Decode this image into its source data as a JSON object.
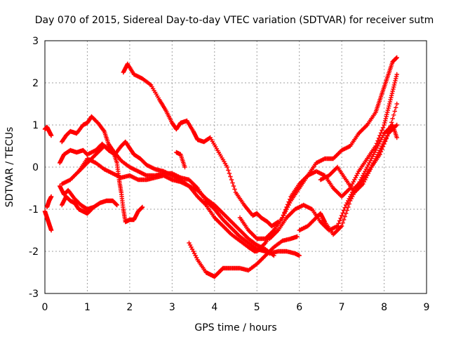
{
  "chart_data": {
    "type": "scatter",
    "title": "Day 070 of 2015, Sidereal Day-to-day VTEC variation (SDTVAR) for receiver sutm",
    "xlabel": "GPS time / hours",
    "ylabel": "SDTVAR / TECUs",
    "xlim": [
      0,
      9
    ],
    "ylim": [
      -3,
      3
    ],
    "xticks": [
      "0",
      "1",
      "2",
      "3",
      "4",
      "5",
      "6",
      "7",
      "8",
      "9"
    ],
    "yticks": [
      "-3",
      "-2",
      "-1",
      "0",
      "1",
      "2",
      "3"
    ],
    "grid": true,
    "marker": "plus",
    "series_color": "#ff0000",
    "series": [
      {
        "x": [
          0.0,
          0.05,
          0.1,
          0.15
        ],
        "y": [
          0.9,
          0.95,
          0.85,
          0.75
        ]
      },
      {
        "x": [
          0.0,
          0.05,
          0.1,
          0.15
        ],
        "y": [
          -1.05,
          -1.2,
          -1.35,
          -1.5
        ]
      },
      {
        "x": [
          0.05,
          0.1,
          0.15
        ],
        "y": [
          -0.95,
          -0.8,
          -0.7
        ]
      },
      {
        "x": [
          1.85,
          1.95,
          2.1,
          2.3,
          2.5,
          2.7,
          2.85,
          3.0,
          3.1,
          3.2,
          3.35,
          3.5,
          3.6,
          3.75,
          3.9,
          4.1,
          4.3,
          4.5,
          4.7,
          4.9,
          5.0,
          5.1,
          5.25,
          5.35,
          5.5
        ],
        "y": [
          2.25,
          2.45,
          2.2,
          2.1,
          1.95,
          1.6,
          1.35,
          1.05,
          0.9,
          1.05,
          1.1,
          0.85,
          0.65,
          0.6,
          0.7,
          0.35,
          0.0,
          -0.6,
          -0.9,
          -1.15,
          -1.1,
          -1.2,
          -1.3,
          -1.4,
          -1.3
        ]
      },
      {
        "x": [
          0.4,
          0.5,
          0.6,
          0.75,
          0.9,
          1.0,
          1.1,
          1.25,
          1.4,
          1.5,
          1.6,
          1.7,
          1.75,
          1.8,
          1.85,
          1.9,
          2.0,
          2.1,
          2.2,
          2.3
        ],
        "y": [
          0.6,
          0.75,
          0.85,
          0.8,
          1.0,
          1.05,
          1.2,
          1.05,
          0.85,
          0.55,
          0.4,
          0.1,
          -0.3,
          -0.6,
          -1.0,
          -1.3,
          -1.25,
          -1.25,
          -1.05,
          -0.95
        ]
      },
      {
        "x": [
          0.35,
          0.45,
          0.6,
          0.75,
          0.9,
          1.0,
          1.2,
          1.35,
          1.5,
          1.65,
          1.8,
          1.9,
          2.0,
          2.1,
          2.25,
          2.4,
          2.6,
          2.8,
          3.0,
          3.2,
          3.4,
          3.6,
          3.8,
          4.0,
          4.2,
          4.4,
          4.6,
          4.8,
          4.95,
          5.1,
          5.3,
          5.5,
          5.7,
          5.9,
          6.0
        ],
        "y": [
          0.1,
          0.3,
          0.4,
          0.35,
          0.4,
          0.3,
          0.4,
          0.55,
          0.4,
          0.3,
          0.5,
          0.6,
          0.45,
          0.3,
          0.2,
          0.05,
          -0.05,
          -0.1,
          -0.2,
          -0.3,
          -0.45,
          -0.7,
          -0.9,
          -1.2,
          -1.4,
          -1.6,
          -1.75,
          -1.9,
          -2.0,
          -1.95,
          -2.05,
          -2.0,
          -2.0,
          -2.05,
          -2.1
        ]
      },
      {
        "x": [
          0.4,
          0.6,
          0.8,
          1.0,
          1.2,
          1.4,
          1.6,
          1.8,
          2.0,
          2.2,
          2.4,
          2.6,
          2.8,
          3.0,
          3.2,
          3.4,
          3.6,
          3.8,
          4.0,
          4.2,
          4.4,
          4.6,
          4.8,
          5.0,
          5.2
        ],
        "y": [
          -0.4,
          -0.3,
          -0.1,
          0.1,
          0.3,
          0.5,
          0.4,
          0.15,
          0.0,
          -0.1,
          -0.2,
          -0.2,
          -0.15,
          -0.15,
          -0.25,
          -0.3,
          -0.5,
          -0.8,
          -1.0,
          -1.25,
          -1.45,
          -1.65,
          -1.8,
          -1.95,
          -2.0
        ]
      },
      {
        "x": [
          0.8,
          1.0,
          1.2,
          1.4,
          1.6,
          1.8,
          2.0,
          2.2,
          2.4,
          2.6,
          2.8,
          3.0,
          3.2,
          3.4,
          3.6,
          3.8,
          4.0,
          4.2,
          4.4,
          4.6,
          4.8,
          5.0,
          5.2,
          5.4
        ],
        "y": [
          -0.1,
          0.2,
          0.1,
          -0.05,
          -0.15,
          -0.25,
          -0.2,
          -0.3,
          -0.3,
          -0.25,
          -0.2,
          -0.3,
          -0.35,
          -0.45,
          -0.55,
          -0.75,
          -0.9,
          -1.1,
          -1.3,
          -1.5,
          -1.7,
          -1.85,
          -1.95,
          -2.1
        ]
      },
      {
        "x": [
          0.35,
          0.45,
          0.55,
          0.7,
          0.85,
          1.0,
          1.15,
          1.3,
          1.45,
          1.6,
          1.7
        ],
        "y": [
          -0.45,
          -0.65,
          -0.55,
          -0.75,
          -0.9,
          -1.0,
          -0.95,
          -0.85,
          -0.8,
          -0.8,
          -0.9
        ]
      },
      {
        "x": [
          0.4,
          0.5,
          0.6,
          0.7,
          0.8,
          0.9,
          1.0,
          1.1
        ],
        "y": [
          -0.9,
          -0.7,
          -0.8,
          -0.85,
          -1.0,
          -1.05,
          -1.1,
          -1.0
        ]
      },
      {
        "x": [
          3.1,
          3.2,
          3.3
        ],
        "y": [
          0.35,
          0.3,
          0.0
        ]
      },
      {
        "x": [
          3.4,
          3.6,
          3.8,
          3.9,
          4.0,
          4.1,
          4.2,
          4.4,
          4.6,
          4.8,
          5.0,
          5.2,
          5.4,
          5.6,
          5.8,
          5.95
        ],
        "y": [
          -1.8,
          -2.2,
          -2.5,
          -2.55,
          -2.6,
          -2.5,
          -2.4,
          -2.4,
          -2.4,
          -2.45,
          -2.3,
          -2.1,
          -1.9,
          -1.75,
          -1.7,
          -1.65
        ]
      },
      {
        "x": [
          4.6,
          4.8,
          5.0,
          5.2,
          5.4,
          5.6,
          5.8,
          6.0,
          6.2,
          6.4,
          6.6,
          6.8,
          7.0,
          7.2,
          7.4,
          7.6,
          7.8,
          7.9,
          8.0,
          8.1,
          8.2,
          8.3
        ],
        "y": [
          -1.2,
          -1.5,
          -1.7,
          -1.7,
          -1.5,
          -1.2,
          -0.8,
          -0.5,
          -0.2,
          0.1,
          0.2,
          0.2,
          0.4,
          0.5,
          0.8,
          1.0,
          1.3,
          1.6,
          1.9,
          2.2,
          2.5,
          2.6
        ]
      },
      {
        "x": [
          5.0,
          5.2,
          5.4,
          5.6,
          5.8,
          6.0,
          6.2,
          6.4,
          6.6,
          6.8,
          7.0,
          7.2,
          7.4,
          7.6,
          7.8,
          8.0,
          8.1,
          8.2,
          8.3
        ],
        "y": [
          -2.0,
          -1.8,
          -1.5,
          -1.2,
          -0.7,
          -0.4,
          -0.2,
          -0.1,
          -0.2,
          -0.5,
          -0.7,
          -0.5,
          -0.1,
          0.2,
          0.5,
          1.0,
          1.4,
          1.8,
          2.2
        ]
      },
      {
        "x": [
          5.3,
          5.5,
          5.7,
          5.9,
          6.1,
          6.3,
          6.5,
          6.7,
          6.9,
          7.1,
          7.3,
          7.5,
          7.7,
          7.9,
          8.1,
          8.3
        ],
        "y": [
          -1.7,
          -1.5,
          -1.2,
          -1.0,
          -0.9,
          -1.0,
          -1.3,
          -1.5,
          -1.4,
          -0.9,
          -0.5,
          -0.3,
          0.0,
          0.3,
          0.8,
          1.5
        ]
      },
      {
        "x": [
          6.0,
          6.2,
          6.4,
          6.5,
          6.6,
          6.8,
          7.0,
          7.2,
          7.4,
          7.6,
          7.8,
          8.0,
          8.2,
          8.3
        ],
        "y": [
          -1.5,
          -1.4,
          -1.2,
          -1.1,
          -1.3,
          -1.6,
          -1.4,
          -0.8,
          -0.4,
          0.0,
          0.4,
          0.8,
          1.0,
          0.7
        ]
      },
      {
        "x": [
          6.5,
          6.7,
          6.9,
          7.1,
          7.3,
          7.5,
          7.7,
          7.9,
          8.1,
          8.3
        ],
        "y": [
          -0.3,
          -0.2,
          0.0,
          -0.3,
          -0.6,
          -0.4,
          0.0,
          0.4,
          0.8,
          1.0
        ]
      }
    ]
  }
}
